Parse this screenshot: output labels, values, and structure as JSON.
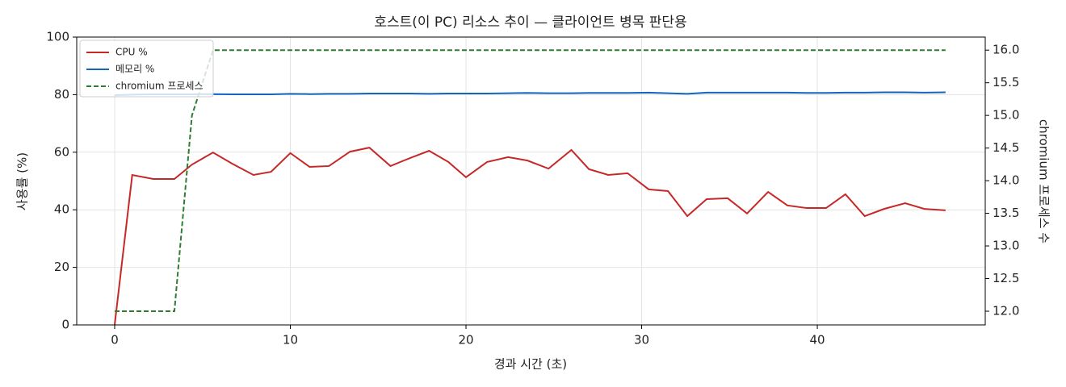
{
  "chart_data": {
    "type": "line",
    "title": "호스트(이 PC) 리소스 추이 — 클라이언트 병목 판단용",
    "xlabel": "경과 시간 (초)",
    "ylabel": "사용률 (%)",
    "y2label": "chromium 프로세스 수",
    "x": [
      0,
      1.0,
      2.2,
      3.4,
      4.4,
      5.6,
      6.7,
      7.9,
      8.9,
      10.0,
      11.1,
      12.2,
      13.4,
      14.5,
      15.7,
      16.7,
      17.9,
      19.0,
      20.0,
      21.2,
      22.4,
      23.5,
      24.7,
      26.0,
      27.0,
      28.1,
      29.2,
      30.4,
      31.5,
      32.6,
      33.7,
      34.9,
      36.0,
      37.2,
      38.3,
      39.4,
      40.5,
      41.6,
      42.7,
      43.8,
      45.0,
      46.1,
      47.3
    ],
    "series": [
      {
        "name": "CPU %",
        "color": "#c62828",
        "axis": "y",
        "dash": false,
        "values": [
          0,
          52.1,
          50.7,
          50.7,
          55.7,
          59.9,
          56.0,
          52.1,
          53.2,
          59.7,
          54.9,
          55.2,
          60.2,
          61.6,
          55.2,
          57.7,
          60.5,
          56.6,
          51.3,
          56.6,
          58.3,
          57.1,
          54.3,
          60.8,
          54.1,
          52.1,
          52.7,
          47.1,
          46.5,
          37.8,
          43.7,
          44.0,
          38.7,
          46.2,
          41.5,
          40.6,
          40.6,
          45.4,
          37.8,
          40.3,
          42.3,
          40.3,
          39.8
        ]
      },
      {
        "name": "메모리 %",
        "color": "#1565c0",
        "axis": "y",
        "dash": false,
        "values": [
          79.8,
          80.0,
          80.1,
          80.1,
          80.1,
          80.2,
          80.1,
          80.1,
          80.1,
          80.3,
          80.2,
          80.3,
          80.3,
          80.4,
          80.4,
          80.4,
          80.3,
          80.4,
          80.4,
          80.4,
          80.5,
          80.6,
          80.5,
          80.5,
          80.6,
          80.6,
          80.6,
          80.7,
          80.5,
          80.3,
          80.7,
          80.7,
          80.7,
          80.7,
          80.7,
          80.6,
          80.6,
          80.7,
          80.7,
          80.8,
          80.8,
          80.7,
          80.8
        ]
      },
      {
        "name": "chromium 프로세스",
        "color": "#2e7d32",
        "axis": "y2",
        "dash": true,
        "values": [
          12,
          12,
          12,
          12,
          15,
          16,
          16,
          16,
          16,
          16,
          16,
          16,
          16,
          16,
          16,
          16,
          16,
          16,
          16,
          16,
          16,
          16,
          16,
          16,
          16,
          16,
          16,
          16,
          16,
          16,
          16,
          16,
          16,
          16,
          16,
          16,
          16,
          16,
          16,
          16,
          16,
          16,
          16
        ]
      }
    ],
    "xlim": [
      -2.16,
      49.56
    ],
    "xticks": [
      0,
      10,
      20,
      30,
      40
    ],
    "ylim": [
      0,
      100
    ],
    "yticks": [
      0,
      20,
      40,
      60,
      80,
      100
    ],
    "y2lim": [
      11.79,
      16.2
    ],
    "y2ticks": [
      {
        "value": 12,
        "label": "12.0"
      },
      12.5,
      {
        "value": 13,
        "label": "13.0"
      },
      13.5,
      {
        "value": 14,
        "label": "14.0"
      },
      14.5,
      {
        "value": 15,
        "label": "15.0"
      },
      15.5,
      {
        "value": 16,
        "label": "16.0"
      }
    ],
    "grid": true,
    "legend": "upper-left"
  }
}
